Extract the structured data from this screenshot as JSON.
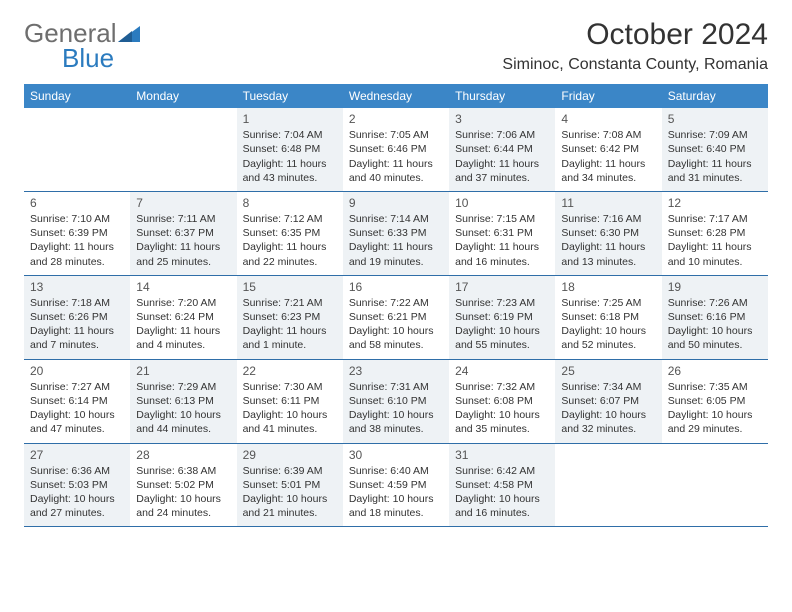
{
  "brand": {
    "word1": "General",
    "word2": "Blue",
    "triangle_color": "#2b7bbf",
    "word1_color": "#6e6e6e",
    "word2_color": "#2b7bbf"
  },
  "header": {
    "month_title": "October 2024",
    "location": "Siminoc, Constanta County, Romania"
  },
  "style": {
    "header_bg": "#3b86c7",
    "row_border": "#2f6ea8",
    "shaded_bg": "#eef2f5",
    "page_bg": "#ffffff",
    "text_color": "#333333",
    "daynum_color": "#555555"
  },
  "day_names": [
    "Sunday",
    "Monday",
    "Tuesday",
    "Wednesday",
    "Thursday",
    "Friday",
    "Saturday"
  ],
  "weeks": [
    [
      {
        "empty": true
      },
      {
        "empty": true
      },
      {
        "num": "1",
        "shaded": true,
        "sunrise": "Sunrise: 7:04 AM",
        "sunset": "Sunset: 6:48 PM",
        "daylight": "Daylight: 11 hours and 43 minutes."
      },
      {
        "num": "2",
        "sunrise": "Sunrise: 7:05 AM",
        "sunset": "Sunset: 6:46 PM",
        "daylight": "Daylight: 11 hours and 40 minutes."
      },
      {
        "num": "3",
        "shaded": true,
        "sunrise": "Sunrise: 7:06 AM",
        "sunset": "Sunset: 6:44 PM",
        "daylight": "Daylight: 11 hours and 37 minutes."
      },
      {
        "num": "4",
        "sunrise": "Sunrise: 7:08 AM",
        "sunset": "Sunset: 6:42 PM",
        "daylight": "Daylight: 11 hours and 34 minutes."
      },
      {
        "num": "5",
        "shaded": true,
        "sunrise": "Sunrise: 7:09 AM",
        "sunset": "Sunset: 6:40 PM",
        "daylight": "Daylight: 11 hours and 31 minutes."
      }
    ],
    [
      {
        "num": "6",
        "sunrise": "Sunrise: 7:10 AM",
        "sunset": "Sunset: 6:39 PM",
        "daylight": "Daylight: 11 hours and 28 minutes."
      },
      {
        "num": "7",
        "shaded": true,
        "sunrise": "Sunrise: 7:11 AM",
        "sunset": "Sunset: 6:37 PM",
        "daylight": "Daylight: 11 hours and 25 minutes."
      },
      {
        "num": "8",
        "sunrise": "Sunrise: 7:12 AM",
        "sunset": "Sunset: 6:35 PM",
        "daylight": "Daylight: 11 hours and 22 minutes."
      },
      {
        "num": "9",
        "shaded": true,
        "sunrise": "Sunrise: 7:14 AM",
        "sunset": "Sunset: 6:33 PM",
        "daylight": "Daylight: 11 hours and 19 minutes."
      },
      {
        "num": "10",
        "sunrise": "Sunrise: 7:15 AM",
        "sunset": "Sunset: 6:31 PM",
        "daylight": "Daylight: 11 hours and 16 minutes."
      },
      {
        "num": "11",
        "shaded": true,
        "sunrise": "Sunrise: 7:16 AM",
        "sunset": "Sunset: 6:30 PM",
        "daylight": "Daylight: 11 hours and 13 minutes."
      },
      {
        "num": "12",
        "sunrise": "Sunrise: 7:17 AM",
        "sunset": "Sunset: 6:28 PM",
        "daylight": "Daylight: 11 hours and 10 minutes."
      }
    ],
    [
      {
        "num": "13",
        "shaded": true,
        "sunrise": "Sunrise: 7:18 AM",
        "sunset": "Sunset: 6:26 PM",
        "daylight": "Daylight: 11 hours and 7 minutes."
      },
      {
        "num": "14",
        "sunrise": "Sunrise: 7:20 AM",
        "sunset": "Sunset: 6:24 PM",
        "daylight": "Daylight: 11 hours and 4 minutes."
      },
      {
        "num": "15",
        "shaded": true,
        "sunrise": "Sunrise: 7:21 AM",
        "sunset": "Sunset: 6:23 PM",
        "daylight": "Daylight: 11 hours and 1 minute."
      },
      {
        "num": "16",
        "sunrise": "Sunrise: 7:22 AM",
        "sunset": "Sunset: 6:21 PM",
        "daylight": "Daylight: 10 hours and 58 minutes."
      },
      {
        "num": "17",
        "shaded": true,
        "sunrise": "Sunrise: 7:23 AM",
        "sunset": "Sunset: 6:19 PM",
        "daylight": "Daylight: 10 hours and 55 minutes."
      },
      {
        "num": "18",
        "sunrise": "Sunrise: 7:25 AM",
        "sunset": "Sunset: 6:18 PM",
        "daylight": "Daylight: 10 hours and 52 minutes."
      },
      {
        "num": "19",
        "shaded": true,
        "sunrise": "Sunrise: 7:26 AM",
        "sunset": "Sunset: 6:16 PM",
        "daylight": "Daylight: 10 hours and 50 minutes."
      }
    ],
    [
      {
        "num": "20",
        "sunrise": "Sunrise: 7:27 AM",
        "sunset": "Sunset: 6:14 PM",
        "daylight": "Daylight: 10 hours and 47 minutes."
      },
      {
        "num": "21",
        "shaded": true,
        "sunrise": "Sunrise: 7:29 AM",
        "sunset": "Sunset: 6:13 PM",
        "daylight": "Daylight: 10 hours and 44 minutes."
      },
      {
        "num": "22",
        "sunrise": "Sunrise: 7:30 AM",
        "sunset": "Sunset: 6:11 PM",
        "daylight": "Daylight: 10 hours and 41 minutes."
      },
      {
        "num": "23",
        "shaded": true,
        "sunrise": "Sunrise: 7:31 AM",
        "sunset": "Sunset: 6:10 PM",
        "daylight": "Daylight: 10 hours and 38 minutes."
      },
      {
        "num": "24",
        "sunrise": "Sunrise: 7:32 AM",
        "sunset": "Sunset: 6:08 PM",
        "daylight": "Daylight: 10 hours and 35 minutes."
      },
      {
        "num": "25",
        "shaded": true,
        "sunrise": "Sunrise: 7:34 AM",
        "sunset": "Sunset: 6:07 PM",
        "daylight": "Daylight: 10 hours and 32 minutes."
      },
      {
        "num": "26",
        "sunrise": "Sunrise: 7:35 AM",
        "sunset": "Sunset: 6:05 PM",
        "daylight": "Daylight: 10 hours and 29 minutes."
      }
    ],
    [
      {
        "num": "27",
        "shaded": true,
        "sunrise": "Sunrise: 6:36 AM",
        "sunset": "Sunset: 5:03 PM",
        "daylight": "Daylight: 10 hours and 27 minutes."
      },
      {
        "num": "28",
        "sunrise": "Sunrise: 6:38 AM",
        "sunset": "Sunset: 5:02 PM",
        "daylight": "Daylight: 10 hours and 24 minutes."
      },
      {
        "num": "29",
        "shaded": true,
        "sunrise": "Sunrise: 6:39 AM",
        "sunset": "Sunset: 5:01 PM",
        "daylight": "Daylight: 10 hours and 21 minutes."
      },
      {
        "num": "30",
        "sunrise": "Sunrise: 6:40 AM",
        "sunset": "Sunset: 4:59 PM",
        "daylight": "Daylight: 10 hours and 18 minutes."
      },
      {
        "num": "31",
        "shaded": true,
        "sunrise": "Sunrise: 6:42 AM",
        "sunset": "Sunset: 4:58 PM",
        "daylight": "Daylight: 10 hours and 16 minutes."
      },
      {
        "empty": true
      },
      {
        "empty": true
      }
    ]
  ]
}
